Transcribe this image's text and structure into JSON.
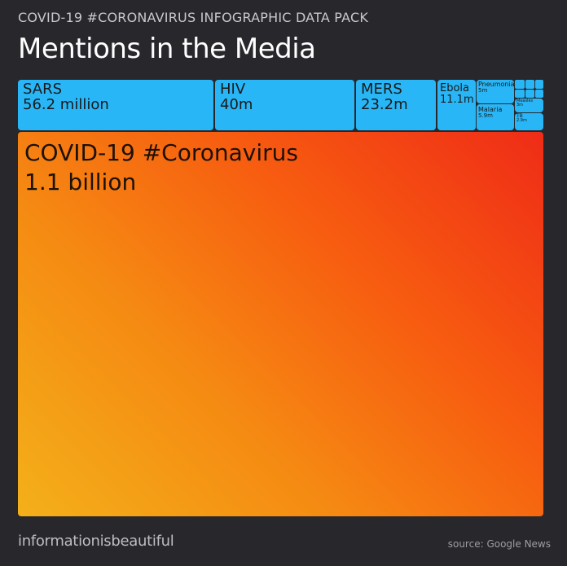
{
  "header": {
    "supertitle": "COVID-19 #CORONAVIRUS INFOGRAPHIC DATA PACK",
    "title": "Mentions in the Media"
  },
  "footer": {
    "brand": "informationisbeautiful",
    "source": "source: Google News"
  },
  "colors": {
    "background": "#28272c",
    "small_tiles": "#29b6f6",
    "covid_tile_gradient": [
      "#ef2c17",
      "#f4b01a"
    ]
  },
  "chart_data": {
    "type": "treemap",
    "title": "Mentions in the Media",
    "items": [
      {
        "name": "COVID-19 #Coronavirus",
        "value_label": "1.1 billion",
        "value": 1100000000
      },
      {
        "name": "SARS",
        "value_label": "56.2 million",
        "value": 56200000
      },
      {
        "name": "HIV",
        "value_label": "40m",
        "value": 40000000
      },
      {
        "name": "MERS",
        "value_label": "23.2m",
        "value": 23200000
      },
      {
        "name": "Ebola",
        "value_label": "11.1m",
        "value": 11100000
      },
      {
        "name": "Pneumonia",
        "value_label": "5m",
        "value": 5000000
      },
      {
        "name": "Malaria",
        "value_label": "5.9m",
        "value": 5900000
      },
      {
        "name": "Measles",
        "value_label": "3m",
        "value": 3000000
      },
      {
        "name": "TB",
        "value_label": "2.9m",
        "value": 2900000
      }
    ]
  }
}
